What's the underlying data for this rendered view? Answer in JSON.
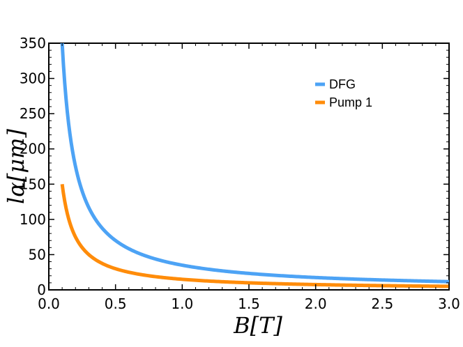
{
  "chart_data": {
    "type": "line",
    "title": "",
    "xlabel": "B[T]",
    "ylabel": "lα[μm]",
    "xlim": [
      0.0,
      3.0
    ],
    "ylim": [
      0,
      350
    ],
    "xticks": [
      0.0,
      0.5,
      1.0,
      1.5,
      2.0,
      2.5,
      3.0
    ],
    "xtick_labels": [
      "0.0",
      "0.5",
      "1.0",
      "1.5",
      "2.0",
      "2.5",
      "3.0"
    ],
    "yticks": [
      0,
      50,
      100,
      150,
      200,
      250,
      300,
      350
    ],
    "ytick_labels": [
      "0",
      "50",
      "100",
      "150",
      "200",
      "250",
      "300",
      "350"
    ],
    "grid": false,
    "legend_position": "top-right",
    "series": [
      {
        "name": "DFG",
        "color": "#4da3f5",
        "x": [
          0.1,
          0.12,
          0.15,
          0.2,
          0.25,
          0.3,
          0.4,
          0.5,
          0.75,
          1.0,
          1.5,
          2.0,
          2.5,
          3.0
        ],
        "y": [
          350,
          292,
          233,
          175,
          140,
          117,
          87.5,
          70,
          46.7,
          35,
          23.3,
          17.5,
          14,
          11.7
        ]
      },
      {
        "name": "Pump 1",
        "color": "#ff8c0a",
        "x": [
          0.1,
          0.12,
          0.15,
          0.2,
          0.25,
          0.3,
          0.4,
          0.5,
          0.75,
          1.0,
          1.5,
          2.0,
          2.5,
          3.0
        ],
        "y": [
          150,
          125,
          100,
          75,
          60,
          50,
          37.5,
          30,
          20,
          15,
          10,
          7.5,
          6,
          5
        ]
      }
    ]
  }
}
